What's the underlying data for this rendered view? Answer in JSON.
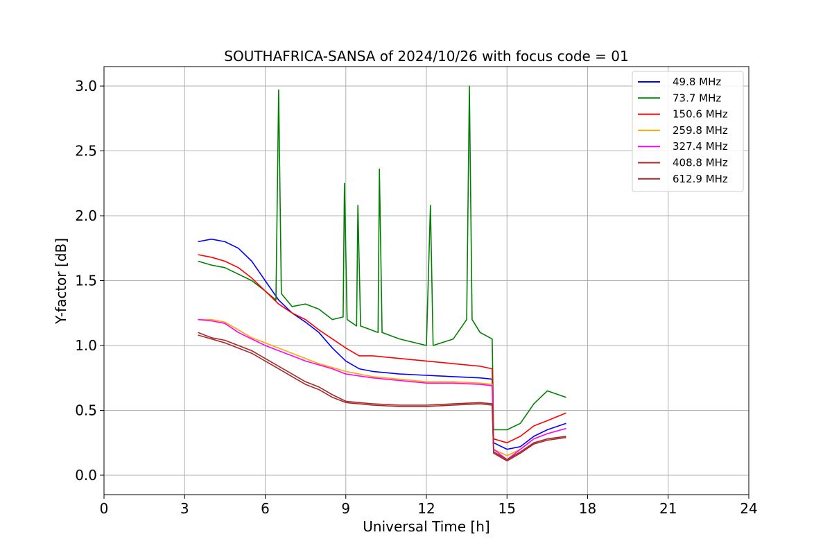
{
  "chart_data": {
    "type": "line",
    "title": "SOUTHAFRICA-SANSA of 2024/10/26 with focus code = 01",
    "xlabel": "Universal Time [h]",
    "ylabel": "Y-factor [dB]",
    "xlim": [
      0,
      24
    ],
    "ylim": [
      -0.15,
      3.15
    ],
    "xticks": [
      0,
      3,
      6,
      9,
      12,
      15,
      18,
      21,
      24
    ],
    "xtick_labels": [
      "0",
      "3",
      "6",
      "9",
      "12",
      "15",
      "18",
      "21",
      "24"
    ],
    "yticks": [
      0.0,
      0.5,
      1.0,
      1.5,
      2.0,
      2.5,
      3.0
    ],
    "ytick_labels": [
      "0.0",
      "0.5",
      "1.0",
      "1.5",
      "2.0",
      "2.5",
      "3.0"
    ],
    "grid": true,
    "legend_position": "top-right",
    "series": [
      {
        "name": " 49.8 MHz",
        "color": "#0000ff",
        "points": [
          [
            3.5,
            1.8
          ],
          [
            4.0,
            1.82
          ],
          [
            4.5,
            1.8
          ],
          [
            5.0,
            1.75
          ],
          [
            5.5,
            1.65
          ],
          [
            6.0,
            1.5
          ],
          [
            6.5,
            1.35
          ],
          [
            7.0,
            1.25
          ],
          [
            7.5,
            1.18
          ],
          [
            8.0,
            1.1
          ],
          [
            8.5,
            0.98
          ],
          [
            9.0,
            0.88
          ],
          [
            9.5,
            0.82
          ],
          [
            10.0,
            0.8
          ],
          [
            11.0,
            0.78
          ],
          [
            12.0,
            0.77
          ],
          [
            13.0,
            0.76
          ],
          [
            14.0,
            0.75
          ],
          [
            14.45,
            0.74
          ],
          [
            14.5,
            0.25
          ],
          [
            15.0,
            0.2
          ],
          [
            15.5,
            0.22
          ],
          [
            16.0,
            0.3
          ],
          [
            16.5,
            0.35
          ],
          [
            17.2,
            0.4
          ]
        ]
      },
      {
        "name": " 73.7 MHz",
        "color": "#008000",
        "points": [
          [
            3.5,
            1.65
          ],
          [
            4.0,
            1.62
          ],
          [
            4.5,
            1.6
          ],
          [
            5.0,
            1.55
          ],
          [
            5.5,
            1.5
          ],
          [
            6.0,
            1.42
          ],
          [
            6.4,
            1.35
          ],
          [
            6.5,
            2.97
          ],
          [
            6.6,
            1.4
          ],
          [
            7.0,
            1.3
          ],
          [
            7.5,
            1.32
          ],
          [
            8.0,
            1.28
          ],
          [
            8.5,
            1.2
          ],
          [
            8.9,
            1.22
          ],
          [
            8.95,
            2.25
          ],
          [
            9.05,
            1.2
          ],
          [
            9.4,
            1.15
          ],
          [
            9.45,
            2.08
          ],
          [
            9.55,
            1.15
          ],
          [
            10.2,
            1.1
          ],
          [
            10.25,
            2.36
          ],
          [
            10.35,
            1.1
          ],
          [
            11.0,
            1.05
          ],
          [
            12.0,
            1.0
          ],
          [
            12.15,
            2.08
          ],
          [
            12.25,
            1.0
          ],
          [
            13.0,
            1.05
          ],
          [
            13.5,
            1.2
          ],
          [
            13.6,
            3.0
          ],
          [
            13.7,
            1.2
          ],
          [
            14.0,
            1.1
          ],
          [
            14.45,
            1.05
          ],
          [
            14.5,
            0.35
          ],
          [
            15.0,
            0.35
          ],
          [
            15.5,
            0.4
          ],
          [
            16.0,
            0.55
          ],
          [
            16.5,
            0.65
          ],
          [
            17.2,
            0.6
          ]
        ]
      },
      {
        "name": " 150.6 MHz",
        "color": "#ff0000",
        "points": [
          [
            3.5,
            1.7
          ],
          [
            4.0,
            1.68
          ],
          [
            4.5,
            1.65
          ],
          [
            5.0,
            1.6
          ],
          [
            5.5,
            1.52
          ],
          [
            6.0,
            1.42
          ],
          [
            6.5,
            1.32
          ],
          [
            7.0,
            1.25
          ],
          [
            7.5,
            1.2
          ],
          [
            8.0,
            1.12
          ],
          [
            8.5,
            1.05
          ],
          [
            9.0,
            0.98
          ],
          [
            9.5,
            0.92
          ],
          [
            10.0,
            0.92
          ],
          [
            11.0,
            0.9
          ],
          [
            12.0,
            0.88
          ],
          [
            13.0,
            0.86
          ],
          [
            14.0,
            0.84
          ],
          [
            14.45,
            0.82
          ],
          [
            14.5,
            0.28
          ],
          [
            15.0,
            0.25
          ],
          [
            15.5,
            0.3
          ],
          [
            16.0,
            0.38
          ],
          [
            16.5,
            0.42
          ],
          [
            17.2,
            0.48
          ]
        ]
      },
      {
        "name": " 259.8 MHz",
        "color": "#ffa500",
        "points": [
          [
            3.5,
            1.2
          ],
          [
            4.0,
            1.2
          ],
          [
            4.5,
            1.18
          ],
          [
            5.0,
            1.12
          ],
          [
            5.5,
            1.06
          ],
          [
            6.0,
            1.02
          ],
          [
            6.5,
            0.98
          ],
          [
            7.0,
            0.94
          ],
          [
            7.5,
            0.9
          ],
          [
            8.0,
            0.86
          ],
          [
            8.5,
            0.83
          ],
          [
            9.0,
            0.8
          ],
          [
            10.0,
            0.76
          ],
          [
            11.0,
            0.74
          ],
          [
            12.0,
            0.72
          ],
          [
            13.0,
            0.72
          ],
          [
            14.0,
            0.71
          ],
          [
            14.45,
            0.7
          ],
          [
            14.5,
            0.2
          ],
          [
            15.0,
            0.15
          ],
          [
            15.5,
            0.2
          ],
          [
            16.0,
            0.28
          ],
          [
            16.5,
            0.32
          ],
          [
            17.2,
            0.36
          ]
        ]
      },
      {
        "name": " 327.4 MHz",
        "color": "#ff00ff",
        "points": [
          [
            3.5,
            1.2
          ],
          [
            4.0,
            1.19
          ],
          [
            4.5,
            1.17
          ],
          [
            5.0,
            1.1
          ],
          [
            5.5,
            1.05
          ],
          [
            6.0,
            1.0
          ],
          [
            6.5,
            0.96
          ],
          [
            7.0,
            0.92
          ],
          [
            7.5,
            0.88
          ],
          [
            8.0,
            0.85
          ],
          [
            8.5,
            0.82
          ],
          [
            9.0,
            0.78
          ],
          [
            10.0,
            0.75
          ],
          [
            11.0,
            0.73
          ],
          [
            12.0,
            0.71
          ],
          [
            13.0,
            0.71
          ],
          [
            14.0,
            0.7
          ],
          [
            14.45,
            0.69
          ],
          [
            14.5,
            0.2
          ],
          [
            15.0,
            0.12
          ],
          [
            15.5,
            0.2
          ],
          [
            16.0,
            0.28
          ],
          [
            16.5,
            0.32
          ],
          [
            17.2,
            0.36
          ]
        ]
      },
      {
        "name": " 408.8 MHz",
        "color": "#a52a2a",
        "points": [
          [
            3.5,
            1.1
          ],
          [
            4.0,
            1.06
          ],
          [
            4.5,
            1.04
          ],
          [
            5.0,
            1.0
          ],
          [
            5.5,
            0.96
          ],
          [
            6.0,
            0.9
          ],
          [
            6.5,
            0.84
          ],
          [
            7.0,
            0.78
          ],
          [
            7.5,
            0.72
          ],
          [
            8.0,
            0.68
          ],
          [
            8.5,
            0.62
          ],
          [
            9.0,
            0.57
          ],
          [
            10.0,
            0.55
          ],
          [
            11.0,
            0.54
          ],
          [
            12.0,
            0.54
          ],
          [
            13.0,
            0.55
          ],
          [
            14.0,
            0.56
          ],
          [
            14.45,
            0.55
          ],
          [
            14.5,
            0.18
          ],
          [
            15.0,
            0.12
          ],
          [
            15.5,
            0.18
          ],
          [
            16.0,
            0.25
          ],
          [
            16.5,
            0.28
          ],
          [
            17.2,
            0.3
          ]
        ]
      },
      {
        "name": " 612.9 MHz",
        "color": "#a52a2a",
        "points": [
          [
            3.5,
            1.08
          ],
          [
            4.0,
            1.05
          ],
          [
            4.5,
            1.02
          ],
          [
            5.0,
            0.98
          ],
          [
            5.5,
            0.94
          ],
          [
            6.0,
            0.88
          ],
          [
            6.5,
            0.82
          ],
          [
            7.0,
            0.76
          ],
          [
            7.5,
            0.7
          ],
          [
            8.0,
            0.66
          ],
          [
            8.5,
            0.6
          ],
          [
            9.0,
            0.56
          ],
          [
            10.0,
            0.54
          ],
          [
            11.0,
            0.53
          ],
          [
            12.0,
            0.53
          ],
          [
            13.0,
            0.54
          ],
          [
            14.0,
            0.55
          ],
          [
            14.45,
            0.54
          ],
          [
            14.5,
            0.17
          ],
          [
            15.0,
            0.11
          ],
          [
            15.5,
            0.17
          ],
          [
            16.0,
            0.24
          ],
          [
            16.5,
            0.27
          ],
          [
            17.2,
            0.29
          ]
        ]
      }
    ]
  }
}
